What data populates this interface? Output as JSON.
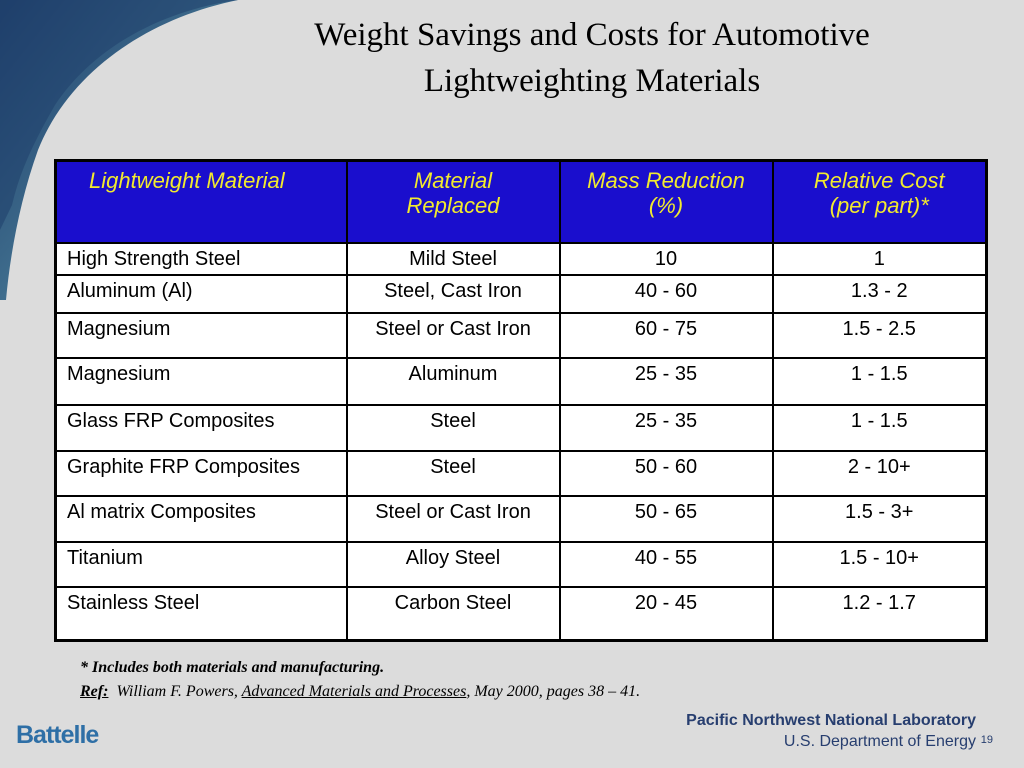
{
  "title": {
    "line1": "Weight Savings and Costs for Automotive",
    "line2": "Lightweighting Materials"
  },
  "table": {
    "headers": [
      [
        "Lightweight Material"
      ],
      [
        "Material",
        "Replaced"
      ],
      [
        "Mass Reduction",
        "(%)"
      ],
      [
        "Relative Cost",
        "(per part)*"
      ]
    ],
    "rows": [
      [
        "High Strength Steel",
        "Mild Steel",
        "10",
        "1"
      ],
      [
        "Aluminum (Al)",
        "Steel, Cast Iron",
        "40 - 60",
        "1.3 - 2"
      ],
      [
        "Magnesium",
        "Steel or Cast Iron",
        "60 - 75",
        "1.5 - 2.5"
      ],
      [
        "Magnesium",
        "Aluminum",
        "25 - 35",
        "1 - 1.5"
      ],
      [
        "Glass FRP Composites",
        "Steel",
        "25 - 35",
        "1 - 1.5"
      ],
      [
        "Graphite FRP Composites",
        "Steel",
        "50 - 60",
        "2 - 10+"
      ],
      [
        "Al matrix Composites",
        "Steel or Cast Iron",
        "50 - 65",
        "1.5 - 3+"
      ],
      [
        "Titanium",
        "Alloy Steel",
        "40 - 55",
        "1.5 - 10+"
      ],
      [
        "Stainless Steel",
        "Carbon Steel",
        "20 - 45",
        "1.2 - 1.7"
      ]
    ]
  },
  "footnote": {
    "note": "* Includes both materials and manufacturing.",
    "ref_label": "Ref:",
    "ref_author": "William F. Powers, ",
    "ref_source": "Advanced Materials and Processes",
    "ref_rest": ", May 2000, pages 38 – 41."
  },
  "footer": {
    "left_logo": "Battelle",
    "lab_name": "Pacific Northwest National Laboratory",
    "department": "U.S. Department of Energy",
    "page_number": "19"
  },
  "colors": {
    "header_bg": "#1a0ecd",
    "header_text": "#f2ea2e",
    "swoosh": "#2a4f7d",
    "logo_blue": "#2e6fa6"
  }
}
